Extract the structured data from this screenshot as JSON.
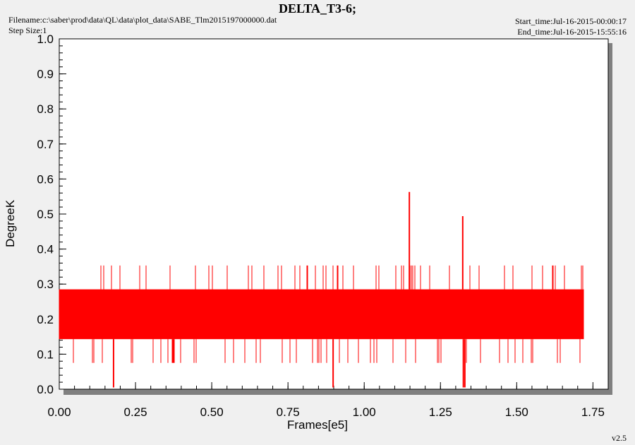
{
  "header": {
    "title": "DELTA_T3-6;",
    "filename": "Filename:c:\\saber\\prod\\data\\QL\\data\\plot_data\\SABE_Tlm2015197000000.dat",
    "step_size": "Step Size:1",
    "start_time": "Start_time:Jul-16-2015-00:00:17",
    "end_time": "End_time:Jul-16-2015-15:55:16"
  },
  "footer": {
    "version": "v2.5"
  },
  "colors": {
    "series": "#ff0000",
    "plot_bg": "#ffffff",
    "page_bg": "#f0f0f0",
    "shadow": "#808080"
  },
  "chart_data": {
    "type": "line",
    "title": "DELTA_T3-6;",
    "xlabel": "Frames[e5]",
    "ylabel": "DegreeK",
    "xlim": [
      0.0,
      1.8
    ],
    "ylim": [
      0.0,
      1.0
    ],
    "x_ticks": [
      "0.00",
      "0.25",
      "0.50",
      "0.75",
      "1.00",
      "1.25",
      "1.50",
      "1.75"
    ],
    "y_ticks": [
      "0.0",
      "0.1",
      "0.2",
      "0.3",
      "0.4",
      "0.5",
      "0.6",
      "0.7",
      "0.8",
      "0.9",
      "1.0"
    ],
    "grid": false,
    "series": [
      {
        "x_range": [
          0.0,
          1.72
        ],
        "band_low": 0.143,
        "band_high": 0.285,
        "occasional_low": 0.075,
        "occasional_high": 0.353,
        "spikes": [
          {
            "x": 1.148,
            "y": 0.563
          },
          {
            "x": 1.323,
            "y": 0.494
          },
          {
            "x": 0.178,
            "y": 0.005
          },
          {
            "x": 0.898,
            "y": 0.005
          },
          {
            "x": 1.325,
            "y": 0.005
          },
          {
            "x": 1.33,
            "y": 0.005
          }
        ]
      }
    ]
  }
}
